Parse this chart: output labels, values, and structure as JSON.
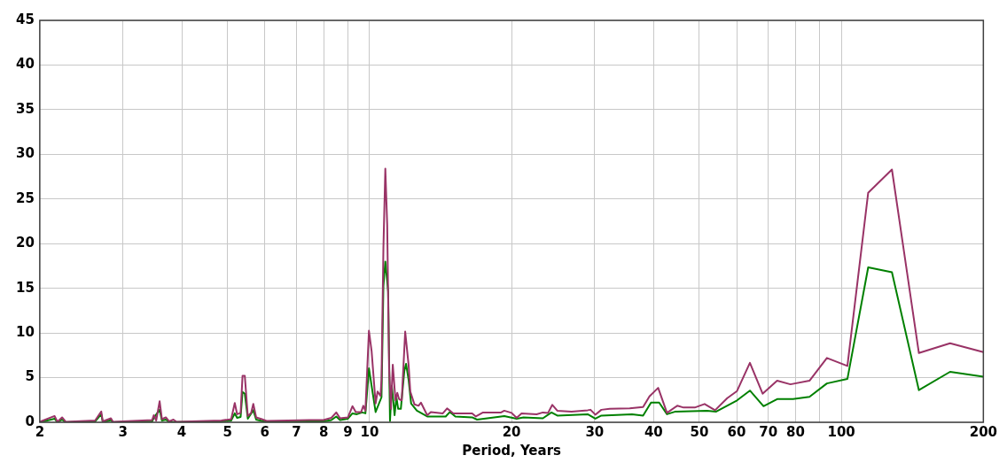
{
  "chart_data": {
    "type": "line",
    "xlabel": "Period, Years",
    "log": "x",
    "grid": true,
    "legend": false,
    "marker": "none",
    "line_style": "solid",
    "xlim": [
      2,
      200
    ],
    "xticks": [
      2,
      3,
      4,
      5,
      6,
      7,
      8,
      9,
      10,
      20,
      30,
      40,
      50,
      60,
      70,
      80,
      {
        "value": 90,
        "label": null
      },
      100,
      200
    ],
    "ylim": [
      0,
      45
    ],
    "yticks": [
      0,
      5,
      10,
      15,
      20,
      25,
      30,
      35,
      40,
      45
    ],
    "series": [
      {
        "color": "#993366",
        "x": [
          2.0,
          2.15,
          2.18,
          2.23,
          2.27,
          2.62,
          2.7,
          2.72,
          2.83,
          2.86,
          3.46,
          3.49,
          3.53,
          3.59,
          3.63,
          3.7,
          3.76,
          3.84,
          3.9,
          4.85,
          5.09,
          5.18,
          5.24,
          5.33,
          5.38,
          5.44,
          5.52,
          5.61,
          5.67,
          5.75,
          5.91,
          6.05,
          7.45,
          7.98,
          8.3,
          8.5,
          8.66,
          9.0,
          9.2,
          9.35,
          9.6,
          9.7,
          9.8,
          9.97,
          10.1,
          10.3,
          10.4,
          10.55,
          10.6,
          10.7,
          10.8,
          10.9,
          11.0,
          11.1,
          11.2,
          11.35,
          11.45,
          11.55,
          11.7,
          11.9,
          12.1,
          12.2,
          12.45,
          12.7,
          12.85,
          13.25,
          13.5,
          14.3,
          14.6,
          15.05,
          16.5,
          16.8,
          17.4,
          19.0,
          19.3,
          20.0,
          20.5,
          21.0,
          22.6,
          23.3,
          23.9,
          24.4,
          25.0,
          26.8,
          29.0,
          29.4,
          30.1,
          31.0,
          32.3,
          35.6,
          38.0,
          39.2,
          40.9,
          42.7,
          44.9,
          46.3,
          48.9,
          51.3,
          54.0,
          57.3,
          60.1,
          64,
          68.1,
          73.1,
          78,
          85.6,
          93.2,
          103,
          114,
          128,
          146,
          170,
          200
        ],
        "values": [
          0.05,
          0.7,
          0.05,
          0.55,
          0.05,
          0.2,
          1.2,
          0.1,
          0.45,
          0.05,
          0.25,
          0.8,
          0.2,
          2.35,
          0.35,
          0.55,
          0.1,
          0.3,
          0.05,
          0.2,
          0.35,
          2.15,
          0.9,
          1.05,
          5.2,
          5.2,
          0.7,
          1.05,
          2.05,
          0.55,
          0.35,
          0.15,
          0.25,
          0.25,
          0.5,
          1.1,
          0.45,
          0.55,
          1.8,
          1.15,
          1.15,
          1.85,
          1.3,
          10.25,
          8.0,
          2.1,
          3.45,
          2.95,
          4.75,
          19.5,
          28.4,
          22.1,
          6.05,
          1.5,
          6.45,
          2.45,
          3.3,
          2.6,
          2.45,
          10.15,
          6.4,
          3.45,
          2.0,
          1.85,
          2.2,
          0.8,
          1.15,
          1.0,
          1.55,
          1.0,
          1.0,
          0.65,
          1.1,
          1.1,
          1.3,
          1.05,
          0.5,
          1.0,
          0.9,
          1.1,
          1.05,
          1.95,
          1.3,
          1.2,
          1.35,
          1.4,
          0.85,
          1.4,
          1.5,
          1.55,
          1.7,
          2.9,
          3.85,
          1.05,
          1.85,
          1.65,
          1.65,
          2.05,
          1.35,
          2.7,
          3.5,
          6.65,
          3.2,
          4.65,
          4.25,
          4.65,
          7.2,
          6.3,
          25.7,
          28.3,
          7.75,
          8.85,
          7.85
        ]
      },
      {
        "color": "#008000",
        "x": [
          2.0,
          2.15,
          2.18,
          2.23,
          2.27,
          2.62,
          2.7,
          2.72,
          2.83,
          2.86,
          3.46,
          3.49,
          3.59,
          3.63,
          3.7,
          3.76,
          3.9,
          4.85,
          5.09,
          5.18,
          5.24,
          5.33,
          5.38,
          5.44,
          5.52,
          5.67,
          5.75,
          5.91,
          6.05,
          7.45,
          7.98,
          8.3,
          8.5,
          8.66,
          9.0,
          9.2,
          9.4,
          9.65,
          9.8,
          9.97,
          10.1,
          10.3,
          10.6,
          10.7,
          10.8,
          10.95,
          11.05,
          11.15,
          11.3,
          11.4,
          11.5,
          11.65,
          11.85,
          11.95,
          12.1,
          12.25,
          12.6,
          13.25,
          14.5,
          14.8,
          15.2,
          16.5,
          16.9,
          19.0,
          19.3,
          20.5,
          21.2,
          23.3,
          24.3,
          25.0,
          29.0,
          30.1,
          31.0,
          36.0,
          38.0,
          39.5,
          41.1,
          42.7,
          44.5,
          51.9,
          54.3,
          60.1,
          64,
          68.4,
          73.1,
          79,
          85.6,
          93.2,
          103,
          114,
          128,
          146,
          170,
          200
        ],
        "values": [
          0,
          0.4,
          0,
          0.3,
          0,
          0.1,
          0.9,
          0,
          0.25,
          0,
          0.1,
          0.5,
          1.4,
          0.2,
          0.3,
          0.05,
          0.02,
          0.1,
          0.2,
          1.0,
          0.5,
          0.6,
          3.4,
          3.2,
          0.4,
          1.35,
          0.3,
          0.15,
          0.05,
          0.1,
          0.1,
          0.25,
          0.65,
          0.25,
          0.4,
          1.0,
          0.9,
          1.1,
          1.0,
          6.05,
          4.1,
          1.15,
          2.8,
          15.25,
          18.0,
          14.6,
          0.15,
          4.1,
          0.8,
          2.8,
          1.5,
          1.5,
          5.75,
          6.55,
          4.75,
          2.1,
          1.3,
          0.65,
          0.65,
          1.15,
          0.65,
          0.55,
          0.3,
          0.65,
          0.7,
          0.4,
          0.55,
          0.45,
          1.1,
          0.75,
          0.9,
          0.4,
          0.75,
          0.9,
          0.75,
          2.2,
          2.2,
          0.9,
          1.2,
          1.3,
          1.2,
          2.45,
          3.55,
          1.8,
          2.6,
          2.6,
          2.85,
          4.35,
          4.85,
          17.35,
          16.8,
          3.6,
          5.65,
          5.1
        ]
      }
    ]
  }
}
